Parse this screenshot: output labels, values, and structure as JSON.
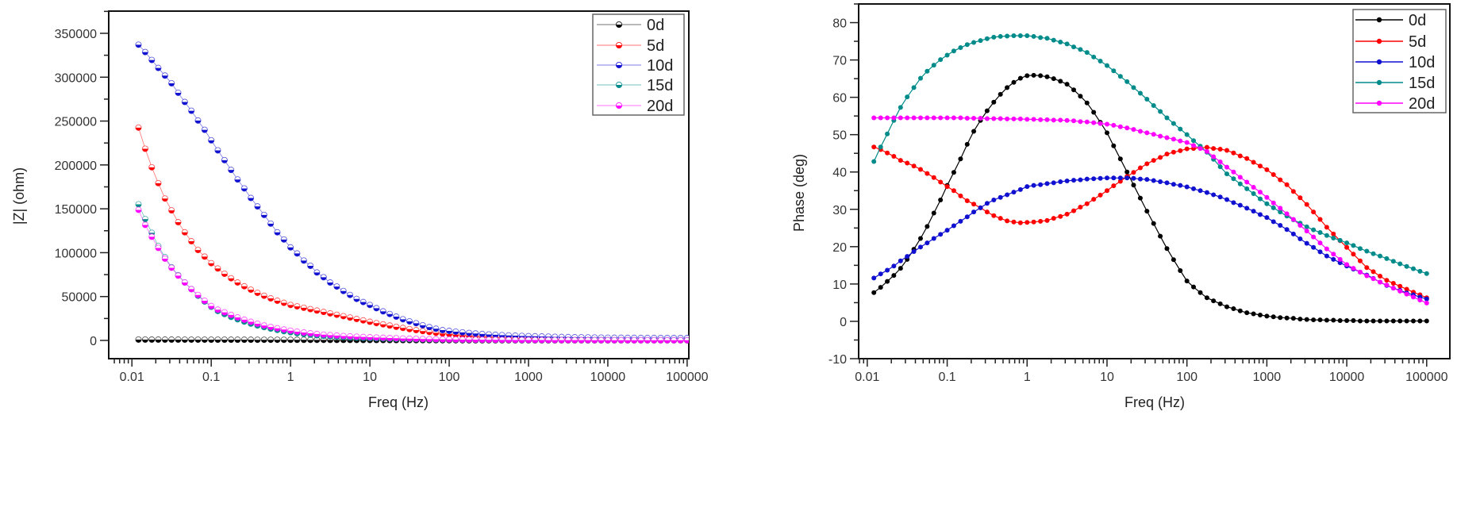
{
  "chart_data": [
    {
      "type": "scatter",
      "subtype": "line+markers",
      "title": "",
      "xlabel": "Freq (Hz)",
      "ylabel": "|Z| (ohm)",
      "xscale": "log",
      "xlim": [
        0.0051,
        105000
      ],
      "ylim": [
        -20800,
        375300
      ],
      "grid": false,
      "legend": "top-right",
      "x_ticks": [
        "0.01",
        "0.1",
        "1",
        "10",
        "100",
        "1000",
        "10000",
        "100000"
      ],
      "y_ticks": [
        "0",
        "50000",
        "100000",
        "150000",
        "200000",
        "250000",
        "300000",
        "350000"
      ],
      "x": [
        0.0121,
        0.0147,
        0.0178,
        0.0215,
        0.0261,
        0.0316,
        0.0383,
        0.0464,
        0.0562,
        0.0681,
        0.0825,
        0.1,
        0.121,
        0.147,
        0.178,
        0.215,
        0.261,
        0.316,
        0.383,
        0.464,
        0.562,
        0.681,
        0.825,
        1,
        1.21,
        1.47,
        1.78,
        2.15,
        2.61,
        3.16,
        3.83,
        4.64,
        5.62,
        6.81,
        8.25,
        10,
        12.1,
        14.7,
        17.8,
        21.5,
        26.1,
        31.6,
        38.3,
        46.4,
        56.2,
        68.1,
        82.5,
        100,
        121,
        147,
        178,
        215,
        261,
        316,
        383,
        464,
        562,
        681,
        825,
        1000,
        1210,
        1470,
        1780,
        2150,
        2610,
        3160,
        3830,
        4640,
        5620,
        6810,
        8250,
        10000,
        12100,
        14700,
        17800,
        21500,
        26100,
        31600,
        38300,
        46400,
        56200,
        68100,
        82500,
        100000
      ],
      "series": [
        {
          "name": "0d",
          "color": "#000000",
          "values": [
            900,
            900,
            890,
            880,
            870,
            860,
            850,
            840,
            830,
            820,
            810,
            800,
            790,
            780,
            770,
            760,
            750,
            740,
            730,
            720,
            710,
            700,
            690,
            680,
            660,
            640,
            620,
            600,
            580,
            560,
            540,
            520,
            500,
            480,
            460,
            440,
            410,
            380,
            350,
            320,
            290,
            260,
            240,
            220,
            200,
            180,
            160,
            150,
            140,
            130,
            120,
            115,
            110,
            105,
            100,
            98,
            96,
            94,
            92,
            90,
            88,
            86,
            85,
            84,
            83,
            82,
            81,
            80,
            80,
            80,
            80,
            80,
            80,
            80,
            80,
            80,
            80,
            80,
            80,
            80,
            80,
            80,
            80,
            80
          ]
        },
        {
          "name": "5d",
          "color": "#ff0000",
          "values": [
            242500,
            218400,
            197300,
            179200,
            161700,
            148200,
            134700,
            123200,
            113000,
            103000,
            95500,
            88000,
            81900,
            75900,
            70800,
            66000,
            61700,
            57800,
            54200,
            50900,
            47900,
            45200,
            42800,
            40400,
            38800,
            37200,
            35600,
            34000,
            32400,
            30800,
            29200,
            27600,
            26000,
            24400,
            22800,
            21200,
            19700,
            18300,
            16900,
            15500,
            14200,
            12900,
            11700,
            10600,
            9600,
            8700,
            7900,
            7200,
            6500,
            5900,
            5300,
            4800,
            4300,
            3900,
            3500,
            3100,
            2800,
            2500,
            2200,
            2000,
            1800,
            1600,
            1400,
            1300,
            1200,
            1100,
            1000,
            900,
            850,
            800,
            750,
            700,
            650,
            600,
            580,
            560,
            540,
            520,
            500,
            480,
            460,
            440,
            420,
            400
          ]
        },
        {
          "name": "10d",
          "color": "#1010d0",
          "values": [
            337000,
            328600,
            319600,
            310500,
            301800,
            293000,
            282200,
            271700,
            261700,
            250600,
            240000,
            228000,
            216600,
            205400,
            194300,
            183400,
            173200,
            162300,
            152700,
            143000,
            133100,
            123200,
            115000,
            106000,
            99100,
            91000,
            85000,
            77400,
            72000,
            66000,
            61400,
            56300,
            51800,
            47300,
            43700,
            40400,
            36700,
            33100,
            30100,
            27100,
            24100,
            21700,
            19600,
            17200,
            15100,
            13300,
            11700,
            10800,
            10000,
            9200,
            8500,
            7900,
            7300,
            6800,
            6400,
            6000,
            5700,
            5400,
            5100,
            4900,
            4700,
            4500,
            4300,
            4100,
            3900,
            3800,
            3600,
            3500,
            3400,
            3300,
            3200,
            3100,
            3000,
            3000,
            2900,
            2900,
            2800,
            2800,
            2800,
            2700,
            2700,
            2700,
            2700,
            2700
          ]
        },
        {
          "name": "15d",
          "color": "#008b8b",
          "values": [
            155100,
            138300,
            122600,
            107500,
            94900,
            83400,
            74400,
            66000,
            58400,
            50900,
            44300,
            38300,
            33500,
            30000,
            26800,
            24000,
            21400,
            19100,
            17000,
            15100,
            13400,
            11900,
            10500,
            9300,
            8200,
            7300,
            6500,
            5800,
            5200,
            4700,
            4200,
            3800,
            3400,
            3100,
            2800,
            2500,
            2300,
            2100,
            1900,
            1700,
            1500,
            1400,
            1300,
            1200,
            1100,
            1000,
            950,
            900,
            850,
            800,
            760,
            720,
            690,
            660,
            630,
            600,
            580,
            560,
            540,
            520,
            500,
            490,
            480,
            470,
            460,
            450,
            440,
            430,
            420,
            410,
            400,
            400,
            390,
            390,
            380,
            380,
            370,
            370,
            360,
            360,
            350,
            350,
            350,
            350
          ]
        },
        {
          "name": "20d",
          "color": "#ff00ff",
          "values": [
            148800,
            131600,
            118100,
            105400,
            93100,
            82800,
            73800,
            66000,
            58400,
            51800,
            45200,
            39200,
            35000,
            32000,
            29000,
            26200,
            23600,
            21200,
            19000,
            17000,
            15300,
            13800,
            12400,
            11100,
            10000,
            9000,
            8100,
            7300,
            6600,
            6000,
            5500,
            5000,
            4600,
            4200,
            3900,
            3600,
            3300,
            3000,
            2700,
            2500,
            2200,
            2000,
            1800,
            1600,
            1500,
            1300,
            1200,
            1100,
            1000,
            900,
            850,
            800,
            750,
            700,
            650,
            600,
            550,
            500,
            480,
            450,
            430,
            410,
            390,
            370,
            350,
            330,
            310,
            300,
            290,
            280,
            270,
            260,
            250,
            245,
            240,
            235,
            230,
            225,
            220,
            215,
            210,
            205,
            200,
            200
          ]
        }
      ]
    },
    {
      "type": "scatter",
      "subtype": "line+markers",
      "title": "",
      "xlabel": "Freq (Hz)",
      "ylabel": "Phase (deg)",
      "xscale": "log",
      "xlim": [
        0.0078,
        195000
      ],
      "ylim": [
        -10,
        85
      ],
      "grid": false,
      "legend": "top-right",
      "x_ticks": [
        "0.01",
        "0.1",
        "1",
        "10",
        "100",
        "1000",
        "10000",
        "100000"
      ],
      "y_ticks": [
        "-10",
        "0",
        "10",
        "20",
        "30",
        "40",
        "50",
        "60",
        "70",
        "80"
      ],
      "x": [
        0.0121,
        0.0147,
        0.0178,
        0.0215,
        0.0261,
        0.0316,
        0.0383,
        0.0464,
        0.0562,
        0.0681,
        0.0825,
        0.1,
        0.121,
        0.147,
        0.178,
        0.215,
        0.261,
        0.316,
        0.383,
        0.464,
        0.562,
        0.681,
        0.825,
        1,
        1.21,
        1.47,
        1.78,
        2.15,
        2.61,
        3.16,
        3.83,
        4.64,
        5.62,
        6.81,
        8.25,
        10,
        12.1,
        14.7,
        17.8,
        21.5,
        26.1,
        31.6,
        38.3,
        46.4,
        56.2,
        68.1,
        82.5,
        100,
        121,
        147,
        178,
        215,
        261,
        316,
        383,
        464,
        562,
        681,
        825,
        1000,
        1210,
        1470,
        1780,
        2150,
        2610,
        3160,
        3830,
        4640,
        5620,
        6810,
        8250,
        10000,
        12100,
        14700,
        17800,
        21500,
        26100,
        31600,
        38300,
        46400,
        56200,
        68100,
        82500,
        100000
      ],
      "series": [
        {
          "name": "0d",
          "color": "#000000",
          "values": [
            7.7,
            9.1,
            10.7,
            12.3,
            14.2,
            16.6,
            19.3,
            22.2,
            25.4,
            29.0,
            32.5,
            36.4,
            39.9,
            43.5,
            47.4,
            50.9,
            53.8,
            56.4,
            58.7,
            60.8,
            62.6,
            64.0,
            65.1,
            65.8,
            65.9,
            65.8,
            65.5,
            65.0,
            64.3,
            63.5,
            62.0,
            60.3,
            58.5,
            56.0,
            53.3,
            50.5,
            47.0,
            43.5,
            40.0,
            36.5,
            33.0,
            29.5,
            26.2,
            22.8,
            19.5,
            16.5,
            13.6,
            10.8,
            9.2,
            7.7,
            6.3,
            5.5,
            4.7,
            3.9,
            3.4,
            2.8,
            2.3,
            2.0,
            1.7,
            1.4,
            1.2,
            1.0,
            0.9,
            0.8,
            0.6,
            0.5,
            0.4,
            0.4,
            0.3,
            0.3,
            0.2,
            0.2,
            0.2,
            0.1,
            0.1,
            0.1,
            0.1,
            0.1,
            0.1,
            0.1,
            0.1,
            0.1,
            0.1,
            0.1
          ]
        },
        {
          "name": "5d",
          "color": "#ff0000",
          "values": [
            46.7,
            46.0,
            45.1,
            44.2,
            43.1,
            42.4,
            41.6,
            40.7,
            39.6,
            38.5,
            37.3,
            36.1,
            35.0,
            33.6,
            32.3,
            31.4,
            30.4,
            29.3,
            28.3,
            27.6,
            26.9,
            26.6,
            26.4,
            26.5,
            26.6,
            26.8,
            27.0,
            27.6,
            28.1,
            28.7,
            29.6,
            30.6,
            31.5,
            32.7,
            33.8,
            35.0,
            36.3,
            37.5,
            38.8,
            39.9,
            41.1,
            42.2,
            43.1,
            43.9,
            44.8,
            45.3,
            45.7,
            46.2,
            46.3,
            46.5,
            46.6,
            46.3,
            46.1,
            45.8,
            45.1,
            44.3,
            43.6,
            42.6,
            41.6,
            40.6,
            39.3,
            37.9,
            36.6,
            34.8,
            33.1,
            31.3,
            29.3,
            27.3,
            25.2,
            23.4,
            21.6,
            19.8,
            18.0,
            16.2,
            14.4,
            13.3,
            12.1,
            11.0,
            10.2,
            9.4,
            8.6,
            7.8,
            7.1,
            6.3
          ]
        },
        {
          "name": "10d",
          "color": "#1010d0",
          "values": [
            11.6,
            12.7,
            13.7,
            14.8,
            16.2,
            17.4,
            18.7,
            19.9,
            21.0,
            22.2,
            23.3,
            24.4,
            25.6,
            26.8,
            28.0,
            29.3,
            30.4,
            31.6,
            32.5,
            33.2,
            33.9,
            34.6,
            35.3,
            36.1,
            36.4,
            36.6,
            36.9,
            37.1,
            37.4,
            37.6,
            37.8,
            37.9,
            38.1,
            38.2,
            38.3,
            38.4,
            38.4,
            38.4,
            38.4,
            38.3,
            38.1,
            38.0,
            37.7,
            37.4,
            37.1,
            36.7,
            36.4,
            36.0,
            35.5,
            35.0,
            34.5,
            33.9,
            33.3,
            32.6,
            31.8,
            31.1,
            30.3,
            29.5,
            28.6,
            27.8,
            26.7,
            25.7,
            24.6,
            23.4,
            22.1,
            20.9,
            19.8,
            18.6,
            17.5,
            16.6,
            15.7,
            14.8,
            14.0,
            13.2,
            12.4,
            11.5,
            10.5,
            9.6,
            8.9,
            8.3,
            7.6,
            7.1,
            6.5,
            6.0
          ]
        },
        {
          "name": "15d",
          "color": "#008b8b",
          "values": [
            42.8,
            46.7,
            50.2,
            53.8,
            57.3,
            60.1,
            62.6,
            65.1,
            67.0,
            68.6,
            70.1,
            71.3,
            72.4,
            73.3,
            74.1,
            74.7,
            75.2,
            75.7,
            76.1,
            76.3,
            76.4,
            76.5,
            76.5,
            76.5,
            76.3,
            76.0,
            75.8,
            75.3,
            74.8,
            74.3,
            73.5,
            72.8,
            72.0,
            70.8,
            69.7,
            68.5,
            67.1,
            65.6,
            64.2,
            62.6,
            61.1,
            59.5,
            57.8,
            56.2,
            54.5,
            53.0,
            51.5,
            50.0,
            48.4,
            46.9,
            45.3,
            43.4,
            41.4,
            39.5,
            38.2,
            36.8,
            35.5,
            34.2,
            32.8,
            31.5,
            30.4,
            29.3,
            28.2,
            27.2,
            26.3,
            25.3,
            24.5,
            23.8,
            23.0,
            22.3,
            21.7,
            21.0,
            20.3,
            19.5,
            18.8,
            18.1,
            17.5,
            16.8,
            16.1,
            15.4,
            14.7,
            14.1,
            13.4,
            12.8
          ]
        },
        {
          "name": "20d",
          "color": "#ff00ff",
          "values": [
            54.5,
            54.5,
            54.5,
            54.5,
            54.5,
            54.5,
            54.5,
            54.5,
            54.5,
            54.5,
            54.5,
            54.5,
            54.5,
            54.5,
            54.4,
            54.4,
            54.4,
            54.3,
            54.3,
            54.3,
            54.2,
            54.2,
            54.2,
            54.1,
            54.1,
            54.0,
            54.0,
            53.9,
            53.9,
            53.8,
            53.7,
            53.5,
            53.4,
            53.2,
            53.0,
            52.8,
            52.5,
            52.1,
            51.8,
            51.4,
            50.9,
            50.5,
            50.1,
            49.6,
            49.2,
            48.8,
            48.3,
            47.9,
            47.1,
            46.3,
            45.5,
            44.1,
            42.7,
            41.3,
            40.0,
            38.6,
            37.3,
            35.9,
            34.6,
            33.2,
            31.7,
            30.3,
            28.8,
            27.3,
            25.7,
            24.2,
            22.6,
            21.0,
            19.4,
            18.0,
            16.6,
            15.2,
            14.2,
            13.2,
            12.2,
            11.4,
            10.5,
            9.7,
            8.9,
            8.1,
            7.3,
            6.5,
            5.7,
            4.9
          ]
        }
      ]
    }
  ]
}
